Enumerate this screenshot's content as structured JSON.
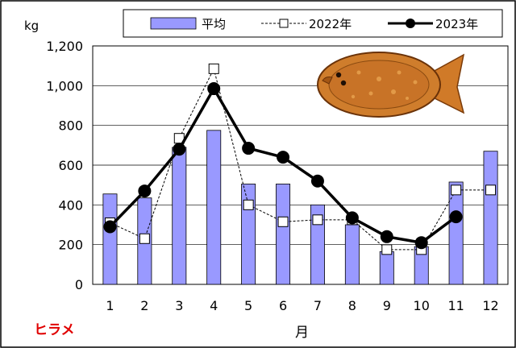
{
  "chart_data": {
    "type": "bar",
    "categories": [
      "1",
      "2",
      "3",
      "4",
      "5",
      "6",
      "7",
      "8",
      "9",
      "10",
      "11",
      "12"
    ],
    "ylabel": "kg",
    "xlabel": "月",
    "species_label": "ヒラメ",
    "ylim": [
      0,
      1200
    ],
    "y_ticks": [
      "0",
      "200",
      "400",
      "600",
      "800",
      "1,000",
      "1,200"
    ],
    "grid": true,
    "legend_position": "top",
    "series": [
      {
        "name": "平均",
        "kind": "bar",
        "color": "#9999ff",
        "values": [
          455,
          435,
          690,
          775,
          505,
          505,
          400,
          300,
          165,
          190,
          515,
          670
        ]
      },
      {
        "name": "2022年",
        "kind": "line-dashed-square",
        "values": [
          310,
          230,
          735,
          1085,
          400,
          315,
          325,
          325,
          175,
          175,
          475,
          475
        ]
      },
      {
        "name": "2023年",
        "kind": "line-bold-circle",
        "values": [
          290,
          470,
          680,
          985,
          685,
          640,
          520,
          335,
          240,
          210,
          340,
          null
        ]
      }
    ]
  },
  "image": {
    "icon": "flounder-fish-illustration"
  }
}
